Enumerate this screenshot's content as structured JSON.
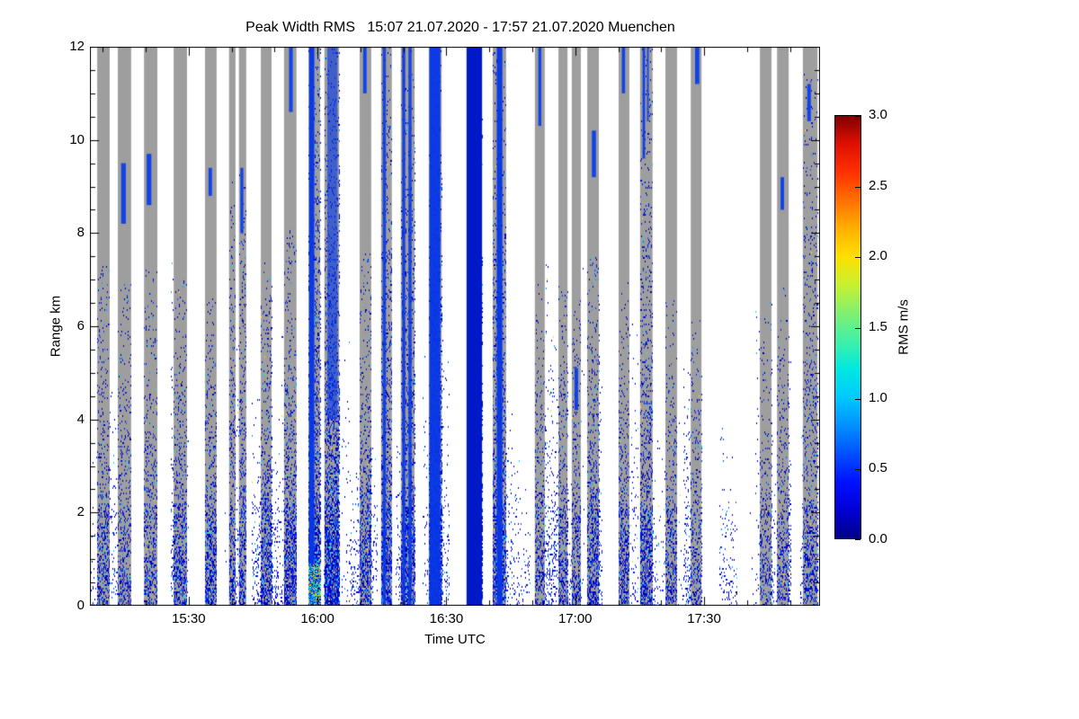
{
  "chart_data": {
    "type": "heatmap",
    "title": "Peak Width RMS   15:07 21.07.2020 - 17:57 21.07.2020 Muenchen",
    "time_start": "15:07 21.07.2020",
    "time_end": "17:57 21.07.2020",
    "station": "Muenchen",
    "xlabel": "Time UTC",
    "ylabel": "Range km",
    "ylim": [
      0,
      12
    ],
    "x_minutes_total": 170,
    "x_ticks": [
      {
        "label": "15:30",
        "m": 23
      },
      {
        "label": "16:00",
        "m": 53
      },
      {
        "label": "16:30",
        "m": 83
      },
      {
        "label": "17:00",
        "m": 113
      },
      {
        "label": "17:30",
        "m": 143
      }
    ],
    "x_minor_start_minute": 3,
    "x_minor_step_minutes": 10,
    "y_ticks": [
      {
        "label": "12",
        "v": 12
      },
      {
        "label": "10",
        "v": 10
      },
      {
        "label": "8",
        "v": 8
      },
      {
        "label": "6",
        "v": 6
      },
      {
        "label": "4",
        "v": 4
      },
      {
        "label": "2",
        "v": 2
      },
      {
        "label": "0",
        "v": 0
      }
    ],
    "y_minor_step": 0.5,
    "colorbar": {
      "label": "RMS m/s",
      "range": [
        0,
        3
      ],
      "ticks": [
        {
          "label": "3.0",
          "v": 3.0
        },
        {
          "label": "2.5",
          "v": 2.5
        },
        {
          "label": "2.0",
          "v": 2.0
        },
        {
          "label": "1.5",
          "v": 1.5
        },
        {
          "label": "1.0",
          "v": 1.0
        },
        {
          "label": "0.5",
          "v": 0.5
        },
        {
          "label": "0.0",
          "v": 0.0
        }
      ],
      "stops": [
        {
          "v": 0.0,
          "c": "#000089"
        },
        {
          "v": 0.2,
          "c": "#0000d5"
        },
        {
          "v": 0.4,
          "c": "#0010ff"
        },
        {
          "v": 0.6,
          "c": "#0050ff"
        },
        {
          "v": 0.8,
          "c": "#0090ff"
        },
        {
          "v": 1.0,
          "c": "#00c8ff"
        },
        {
          "v": 1.2,
          "c": "#00e8e0"
        },
        {
          "v": 1.4,
          "c": "#40f0a8"
        },
        {
          "v": 1.6,
          "c": "#80f070"
        },
        {
          "v": 1.8,
          "c": "#c8f030"
        },
        {
          "v": 2.0,
          "c": "#ffe000"
        },
        {
          "v": 2.2,
          "c": "#ffb000"
        },
        {
          "v": 2.4,
          "c": "#ff7000"
        },
        {
          "v": 2.6,
          "c": "#ff3000"
        },
        {
          "v": 2.8,
          "c": "#e01000"
        },
        {
          "v": 3.0,
          "c": "#800000"
        }
      ]
    },
    "colors": {
      "background": "#ffffff",
      "no_signal_gray": "#9e9e9e",
      "solid_blue": "#0435e8",
      "blob_blue": "#0238f0",
      "speckle_palette": [
        {
          "c": "#0000a0",
          "w": 0.3
        },
        {
          "c": "#0000cd",
          "w": 0.25
        },
        {
          "c": "#0018f0",
          "w": 0.2
        },
        {
          "c": "#1038ff",
          "w": 0.1
        },
        {
          "c": "#0060ff",
          "w": 0.06
        },
        {
          "c": "#00a8ff",
          "w": 0.04
        },
        {
          "c": "#00e0e8",
          "w": 0.03
        },
        {
          "c": "#50e890",
          "w": 0.01
        },
        {
          "c": "#ffd800",
          "w": 0.01
        }
      ],
      "hot_palette": [
        "#00e4ff",
        "#00ffb0",
        "#60ff60",
        "#ffe000",
        "#ff9000",
        "#00b0ff"
      ]
    },
    "background_speckle": {
      "density": 0.08,
      "hmax_km": 7.5
    },
    "seed": 1234567,
    "scans": [
      {
        "t0": 1.7,
        "t1": 4.6,
        "d": 0.32,
        "hmax": 7.3
      },
      {
        "t0": 6.5,
        "t1": 9.6,
        "d": 0.27,
        "hmax": 7.0,
        "blobs": [
          [
            0.25,
            0.6,
            8.2,
            9.5
          ]
        ]
      },
      {
        "t0": 12.6,
        "t1": 15.7,
        "d": 0.27,
        "hmax": 7.3,
        "blobs": [
          [
            0.2,
            0.55,
            8.6,
            9.7
          ]
        ]
      },
      {
        "t0": 19.5,
        "t1": 22.6,
        "d": 0.36,
        "hmax": 7.0
      },
      {
        "t0": 26.8,
        "t1": 29.5,
        "d": 0.4,
        "hmax": 6.6,
        "blobs": [
          [
            0.3,
            0.6,
            8.8,
            9.4
          ]
        ]
      },
      {
        "t0": 32.4,
        "t1": 33.9,
        "d": 0.34,
        "hmax": 9.3
      },
      {
        "t0": 34.7,
        "t1": 36.4,
        "d": 0.34,
        "hmax": 9.3,
        "blobs": [
          [
            0.2,
            0.6,
            8.0,
            9.4
          ]
        ]
      },
      {
        "t0": 39.8,
        "t1": 42.3,
        "d": 0.4,
        "hmax": 7.6
      },
      {
        "t0": 45.2,
        "t1": 48.1,
        "d": 0.42,
        "hmax": 8.2,
        "blobs": [
          [
            0.4,
            0.7,
            10.6,
            12.0
          ]
        ]
      },
      {
        "t0": 50.9,
        "t1": 53.6,
        "d": 0.5,
        "hmax": 12.0,
        "solids": [
          [
            0.05,
            0.5,
            0.0,
            12.0,
            0.95
          ]
        ],
        "hot": true
      },
      {
        "t0": 54.6,
        "t1": 58.0,
        "d": 0.55,
        "hmax": 12.0,
        "solids": [
          [
            0.2,
            0.9,
            4.0,
            12.0,
            0.6
          ]
        ]
      },
      {
        "t0": 62.8,
        "t1": 65.5,
        "d": 0.4,
        "hmax": 7.6,
        "blobs": [
          [
            0.3,
            0.6,
            11.0,
            12.0
          ]
        ]
      },
      {
        "t0": 67.8,
        "t1": 70.3,
        "d": 0.42,
        "hmax": 12.0,
        "solids": [
          [
            0.15,
            0.45,
            0.0,
            12.0,
            0.85
          ]
        ]
      },
      {
        "t0": 72.4,
        "t1": 75.6,
        "d": 0.42,
        "hmax": 12.0,
        "solids": [
          [
            0.1,
            0.32,
            0.0,
            12.0,
            0.9
          ],
          [
            0.55,
            0.78,
            0.0,
            12.0,
            0.85
          ]
        ]
      },
      {
        "t0": 78.9,
        "t1": 81.9,
        "d": 0.45,
        "hmax": 12.0,
        "solids": [
          [
            0.05,
            0.9,
            0.0,
            12.0,
            0.95
          ]
        ]
      },
      {
        "t0": 87.7,
        "t1": 91.3,
        "d": 0.45,
        "hmax": 12.0,
        "solid_color": "#0019c6",
        "solids": [
          [
            0.0,
            1.0,
            0.0,
            12.0,
            1.0
          ]
        ]
      },
      {
        "t0": 93.8,
        "t1": 96.9,
        "d": 0.42,
        "hmax": 12.0,
        "solids": [
          [
            0.3,
            0.72,
            0.0,
            12.0,
            0.95
          ]
        ]
      },
      {
        "t0": 103.6,
        "t1": 105.9,
        "d": 0.3,
        "hmax": 7.0,
        "blobs": [
          [
            0.35,
            0.65,
            10.3,
            12.0
          ]
        ]
      },
      {
        "t0": 109.1,
        "t1": 111.2,
        "d": 0.34,
        "hmax": 7.0
      },
      {
        "t0": 112.2,
        "t1": 114.3,
        "d": 0.34,
        "hmax": 6.6,
        "blobs": [
          [
            0.3,
            0.7,
            4.2,
            5.1
          ]
        ]
      },
      {
        "t0": 115.8,
        "t1": 118.5,
        "d": 0.38,
        "hmax": 7.6,
        "blobs": [
          [
            0.4,
            0.75,
            9.2,
            10.2
          ]
        ]
      },
      {
        "t0": 123.1,
        "t1": 125.6,
        "d": 0.34,
        "hmax": 7.0,
        "blobs": [
          [
            0.3,
            0.6,
            11.0,
            12.0
          ]
        ]
      },
      {
        "t0": 128.1,
        "t1": 131.0,
        "d": 0.34,
        "hmax": 12.0,
        "solids": [
          [
            0.2,
            0.4,
            9.6,
            12.0,
            0.9
          ],
          [
            0.55,
            0.7,
            10.4,
            12.0,
            0.8
          ]
        ]
      },
      {
        "t0": 134.0,
        "t1": 136.7,
        "d": 0.3,
        "hmax": 6.6
      },
      {
        "t0": 139.9,
        "t1": 142.4,
        "d": 0.27,
        "hmax": 6.2,
        "blobs": [
          [
            0.4,
            0.8,
            11.2,
            12.0
          ]
        ]
      },
      {
        "t0": 156.0,
        "t1": 158.7,
        "d": 0.24,
        "hmax": 6.6
      },
      {
        "t0": 160.0,
        "t1": 162.7,
        "d": 0.24,
        "hmax": 7.0,
        "blobs": [
          [
            0.3,
            0.6,
            8.5,
            9.2
          ]
        ]
      },
      {
        "t0": 166.0,
        "t1": 169.4,
        "d": 0.27,
        "hmax": 11.5,
        "blobs": [
          [
            0.3,
            0.55,
            10.4,
            11.2
          ]
        ]
      }
    ]
  }
}
